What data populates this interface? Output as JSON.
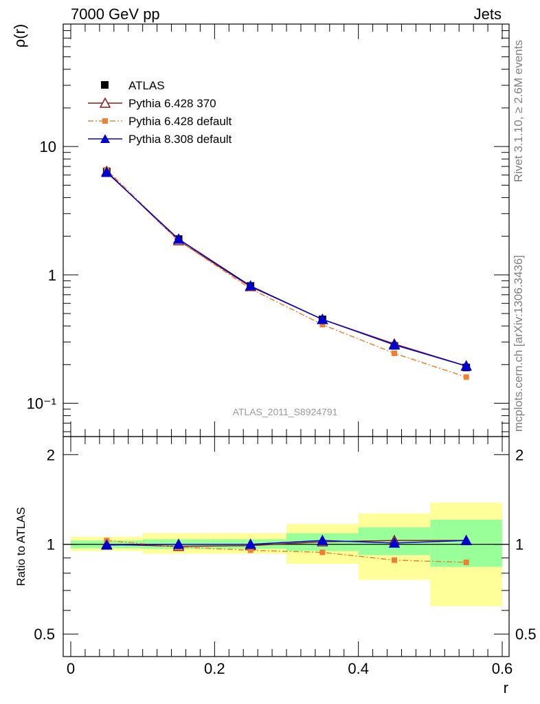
{
  "header": {
    "left": "7000 GeV pp",
    "right": "Jets"
  },
  "side_labels": {
    "rivet": "Rivet 3.1.10, ≥ 2.6M events",
    "mcplots": "mcplots.cern.ch [arXiv:1306.3436]"
  },
  "watermark": "ATLAS_2011_S8924791",
  "colors": {
    "atlas": "#000000",
    "py6_370": "#8b1a1a",
    "py6_default": "#f08030",
    "py8_default": "#0000cc",
    "band_inner": "#99ff99",
    "band_outer": "#ffff99"
  },
  "chart_data": [
    {
      "type": "line",
      "panel": "main",
      "ylabel": "ρ(r)",
      "xlim": [
        0,
        0.6
      ],
      "ylim": [
        0.055,
        90
      ],
      "yscale": "log",
      "ytick_labels": [
        "10⁻¹",
        "1",
        "10"
      ],
      "legend": {
        "placement": "top-left"
      },
      "x": [
        0.05,
        0.15,
        0.25,
        0.35,
        0.45,
        0.55
      ],
      "series": [
        {
          "name": "ATLAS",
          "marker": "square",
          "values": [
            6.4,
            1.9,
            0.82,
            0.45,
            0.28,
            0.19
          ]
        },
        {
          "name": "Pythia 6.428 370",
          "marker": "open-triangle",
          "line": "solid",
          "values": [
            6.4,
            1.85,
            0.81,
            0.45,
            0.29,
            0.195
          ]
        },
        {
          "name": "Pythia 6.428 default",
          "marker": "small-square",
          "line": "dashdot",
          "values": [
            6.6,
            1.85,
            0.78,
            0.41,
            0.245,
            0.16
          ]
        },
        {
          "name": "Pythia 8.308 default",
          "marker": "filled-triangle",
          "line": "solid",
          "values": [
            6.3,
            1.9,
            0.82,
            0.45,
            0.285,
            0.195
          ]
        }
      ]
    },
    {
      "type": "line",
      "panel": "ratio",
      "xlabel": "r",
      "ylabel": "Ratio to ATLAS",
      "xlim": [
        0,
        0.6
      ],
      "ylim": [
        0.42,
        2.3
      ],
      "yscale": "log",
      "xtick_labels": [
        "0",
        "0.2",
        "0.4",
        "0.6"
      ],
      "ytick_labels": [
        "0.5",
        "1",
        "2"
      ],
      "bands": [
        {
          "x0": 0.0,
          "x1": 0.1,
          "inner": [
            0.97,
            1.03
          ],
          "outer": [
            0.95,
            1.06
          ]
        },
        {
          "x0": 0.1,
          "x1": 0.2,
          "inner": [
            0.965,
            1.04
          ],
          "outer": [
            0.93,
            1.09
          ]
        },
        {
          "x0": 0.2,
          "x1": 0.3,
          "inner": [
            0.965,
            1.04
          ],
          "outer": [
            0.93,
            1.09
          ]
        },
        {
          "x0": 0.3,
          "x1": 0.4,
          "inner": [
            0.95,
            1.09
          ],
          "outer": [
            0.86,
            1.17
          ]
        },
        {
          "x0": 0.4,
          "x1": 0.5,
          "inner": [
            0.92,
            1.14
          ],
          "outer": [
            0.76,
            1.27
          ]
        },
        {
          "x0": 0.5,
          "x1": 0.6,
          "inner": [
            0.84,
            1.21
          ],
          "outer": [
            0.62,
            1.38
          ]
        }
      ],
      "x": [
        0.05,
        0.15,
        0.25,
        0.35,
        0.45,
        0.55
      ],
      "series": [
        {
          "name": "Pythia 6.428 370",
          "values": [
            1.0,
            0.985,
            0.99,
            1.02,
            1.03,
            1.03
          ]
        },
        {
          "name": "Pythia 6.428 default",
          "values": [
            1.03,
            0.98,
            0.955,
            0.94,
            0.885,
            0.87
          ]
        },
        {
          "name": "Pythia 8.308 default",
          "values": [
            0.995,
            1.0,
            1.0,
            1.03,
            1.01,
            1.03
          ]
        }
      ]
    }
  ]
}
